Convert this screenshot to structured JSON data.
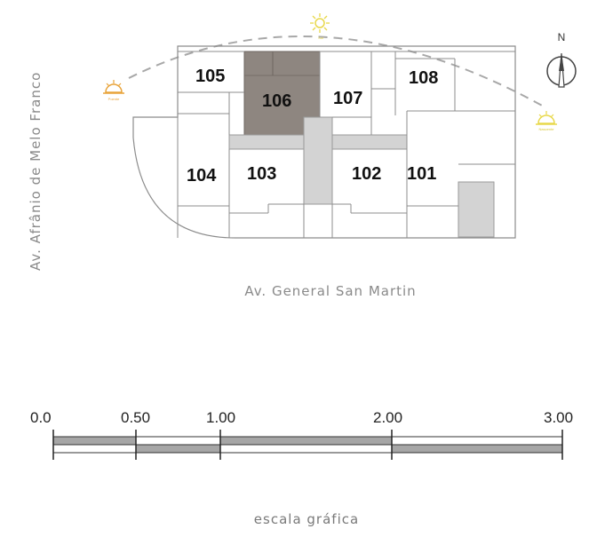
{
  "streets": {
    "left": "Av. Afrânio de Melo Franco",
    "bottom": "Av. General San Martin"
  },
  "sun": {
    "west": "Poente",
    "noon": "Sol",
    "east": "Nascente"
  },
  "compass": {
    "label": "N"
  },
  "units": {
    "u101": "101",
    "u102": "102",
    "u103": "103",
    "u104": "104",
    "u105": "105",
    "u106": "106",
    "u107": "107",
    "u108": "108"
  },
  "highlighted_unit": "106",
  "scale": {
    "ticks": [
      "0.0",
      "0.50",
      "1.00",
      "2.00",
      "3.00"
    ],
    "caption": "escala gráfica"
  },
  "colors": {
    "highlight": "#8e8680",
    "common_area": "#d3d3d3",
    "line": "#8c8c8c",
    "sun_west": "#e8a33a",
    "sun_east": "#e8d84a",
    "scale_fill": "#a6a6a6"
  }
}
